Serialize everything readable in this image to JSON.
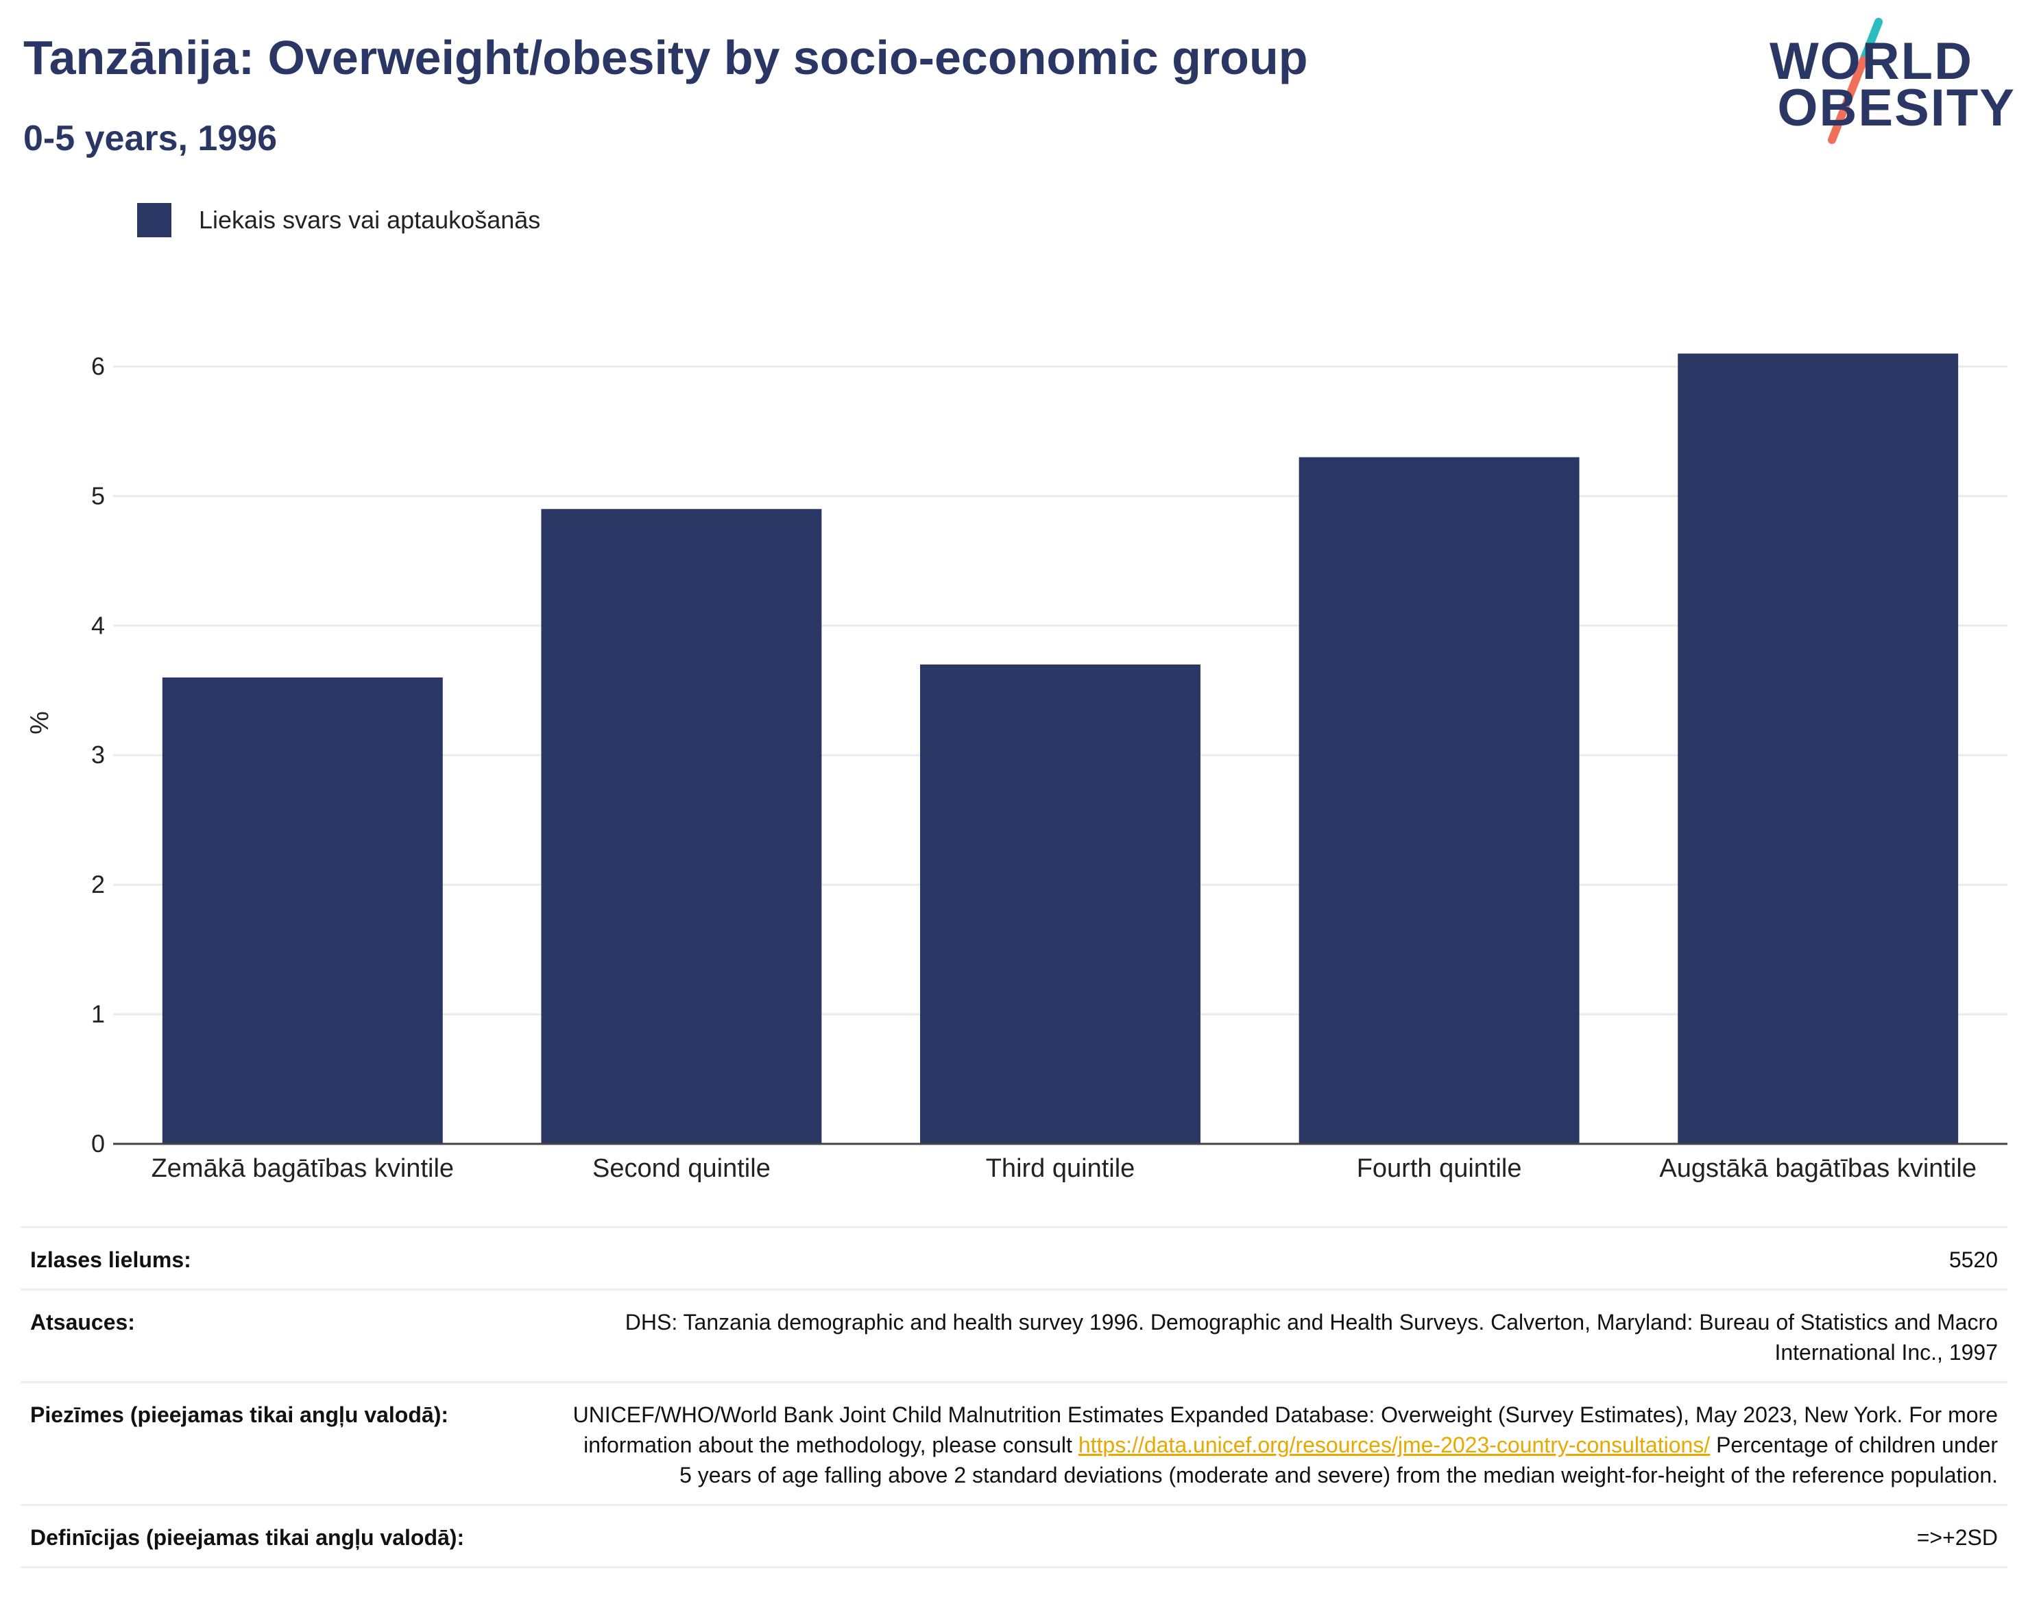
{
  "header": {
    "title": "Tanzānija: Overweight/obesity by socio-economic group",
    "subtitle": "0-5 years, 1996"
  },
  "logo": {
    "line1": "WORLD",
    "line2": "OBESITY",
    "colors": {
      "text": "#2a3764",
      "slash_top": "#2bbcbf",
      "slash_bottom": "#f06f5b"
    }
  },
  "legend": {
    "items": [
      {
        "label": "Liekais svars vai aptaukošanās",
        "color": "#2a3764"
      }
    ]
  },
  "chart_data": {
    "type": "bar",
    "categories": [
      "Zemākā bagātības kvintile",
      "Second quintile",
      "Third quintile",
      "Fourth quintile",
      "Augstākā bagātības kvintile"
    ],
    "series": [
      {
        "name": "Liekais svars vai aptaukošanās",
        "values": [
          3.6,
          4.9,
          3.7,
          5.3,
          6.1
        ],
        "color": "#2a3764"
      }
    ],
    "ylabel": "%",
    "ylim": [
      0,
      6.5
    ],
    "yticks": [
      0,
      1,
      2,
      3,
      4,
      5,
      6
    ],
    "grid": true,
    "legend_position": "top-left"
  },
  "meta": {
    "sample_size": {
      "label": "Izlases lielums:",
      "value": "5520"
    },
    "references": {
      "label": "Atsauces:",
      "value": "DHS: Tanzania demographic and health survey 1996. Demographic and Health Surveys. Calverton, Maryland: Bureau of Statistics and Macro International Inc., 1997"
    },
    "notes": {
      "label": "Piezīmes (pieejamas tikai angļu valodā):",
      "text_before": "UNICEF/WHO/World Bank Joint Child Malnutrition Estimates Expanded Database: Overweight (Survey Estimates), May 2023, New York. For more information about the methodology, please consult ",
      "link": "https://data.unicef.org/resources/jme-2023-country-consultations/",
      "text_after": " Percentage of children under 5 years of age falling above 2 standard deviations (moderate and severe) from the median weight-for-height of the reference population."
    },
    "definitions": {
      "label": "Definīcijas (pieejamas tikai angļu valodā):",
      "value": "=>+2SD"
    }
  }
}
